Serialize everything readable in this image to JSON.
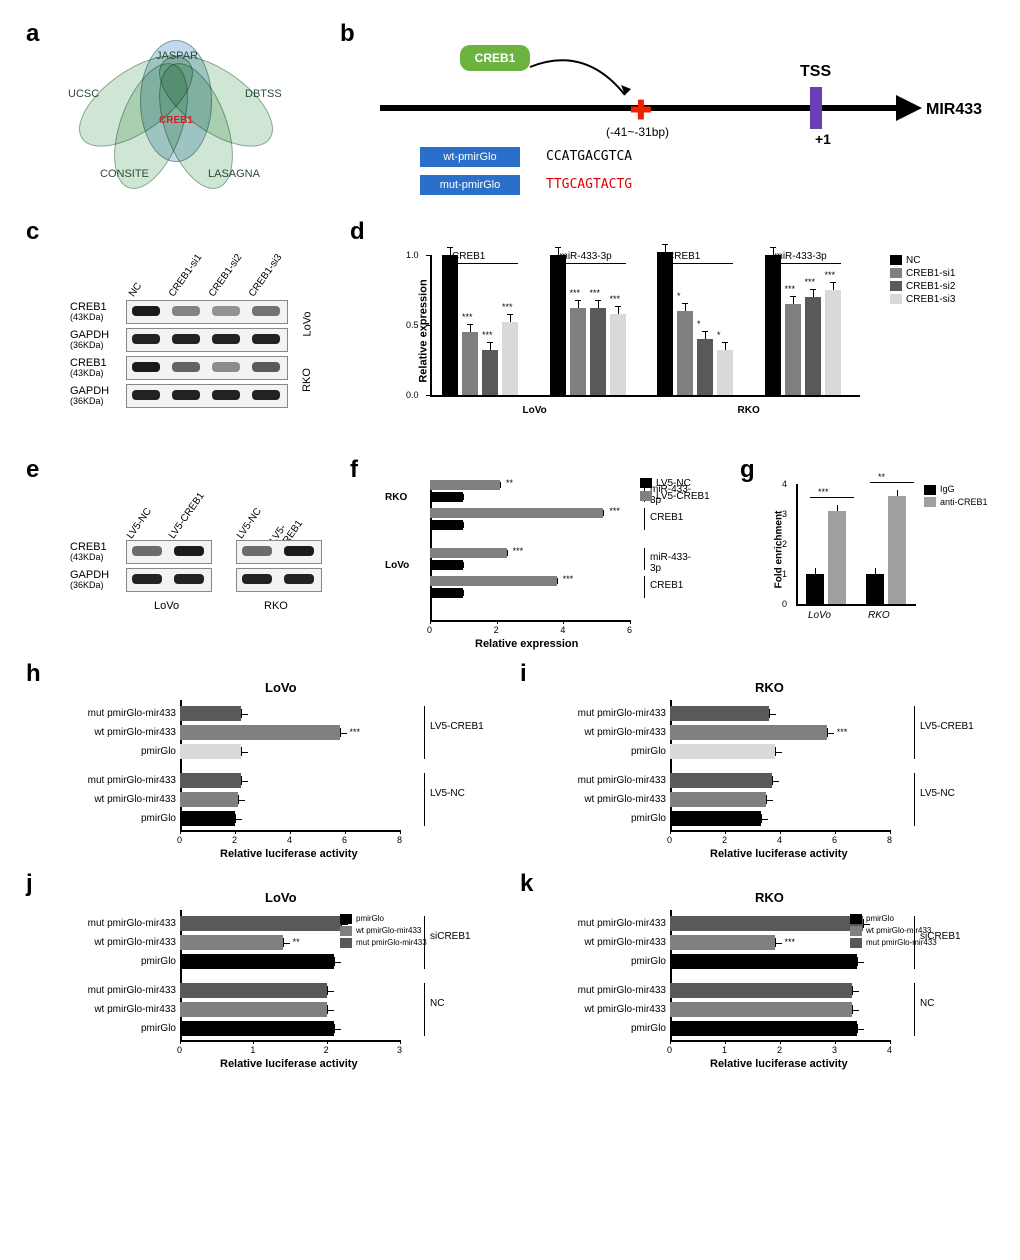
{
  "labels": {
    "a": "a",
    "b": "b",
    "c": "c",
    "d": "d",
    "e": "e",
    "f": "f",
    "g": "g",
    "h": "h",
    "i": "i",
    "j": "j",
    "k": "k"
  },
  "colors": {
    "nc": "#000000",
    "si1": "#808080",
    "si2": "#595959",
    "si3": "#d9d9d9",
    "lv5nc": "#000000",
    "lv5creb": "#808080",
    "igg": "#000000",
    "anti": "#a0a0a0",
    "pmir": "#000000",
    "wt": "#808080",
    "mut": "#595959",
    "green": "#6db33f",
    "blue": "#2a6fc9",
    "purple": "#6b3fb3",
    "red": "#e20000"
  },
  "venn": {
    "center": "CREB1",
    "petals": [
      "JASPAR",
      "DBTSS",
      "LASAGNA",
      "CONSITE",
      "UCSC"
    ]
  },
  "panel_b": {
    "creb": "CREB1",
    "tss": "TSS",
    "mir": "MIR433",
    "pos": "(-41~-31bp)",
    "plus1": "+1",
    "wt_label": "wt-pmirGlo",
    "mut_label": "mut-pmirGlo",
    "wt_seq": "CCATGACGTCA",
    "mut_seq": "TTGCAGTACTG"
  },
  "panel_c": {
    "lanes": [
      "NC",
      "CREB1-si1",
      "CREB1-si2",
      "CREB1-si3"
    ],
    "rows": [
      {
        "name": "CREB1",
        "kda": "(43KDa)",
        "cell": "LoVo",
        "intensity": [
          1.0,
          0.35,
          0.25,
          0.45
        ]
      },
      {
        "name": "GAPDH",
        "kda": "(36KDa)",
        "cell": "LoVo",
        "intensity": [
          0.95,
          0.95,
          0.95,
          0.95
        ]
      },
      {
        "name": "CREB1",
        "kda": "(43KDa)",
        "cell": "RKO",
        "intensity": [
          1.0,
          0.55,
          0.3,
          0.6
        ]
      },
      {
        "name": "GAPDH",
        "kda": "(36KDa)",
        "cell": "RKO",
        "intensity": [
          0.95,
          0.95,
          0.95,
          0.95
        ]
      }
    ]
  },
  "panel_d": {
    "type": "bar",
    "ylabel": "Relative expression",
    "ylim": [
      0,
      1.0
    ],
    "ytick_step": 0.5,
    "groups": [
      "CREB1",
      "miR-433-3p",
      "CREB1",
      "miR-433-3p"
    ],
    "cells": [
      "LoVo",
      "RKO"
    ],
    "legend": [
      "NC",
      "CREB1-si1",
      "CREB1-si2",
      "CREB1-si3"
    ],
    "colors": [
      "#000000",
      "#808080",
      "#595959",
      "#d9d9d9"
    ],
    "data": [
      [
        1.0,
        0.45,
        0.32,
        0.52
      ],
      [
        1.0,
        0.62,
        0.62,
        0.58
      ],
      [
        1.02,
        0.6,
        0.4,
        0.32
      ],
      [
        1.0,
        0.65,
        0.7,
        0.75
      ]
    ],
    "err": 0.05,
    "sig": [
      [
        "",
        "***",
        "***",
        "***"
      ],
      [
        "",
        "***",
        "***",
        "***"
      ],
      [
        "",
        "*",
        "*",
        "*"
      ],
      [
        "",
        "***",
        "***",
        "***"
      ]
    ]
  },
  "panel_e": {
    "lanes": [
      "LV5-NC",
      "LV5-CREB1"
    ],
    "cells": [
      "LoVo",
      "RKO"
    ],
    "rows": [
      {
        "name": "CREB1",
        "kda": "(43KDa)"
      },
      {
        "name": "GAPDH",
        "kda": "(36KDa)"
      }
    ],
    "intensity": {
      "LoVo": [
        [
          0.5,
          1.0
        ],
        [
          0.95,
          0.95
        ]
      ],
      "RKO": [
        [
          0.5,
          1.0
        ],
        [
          0.95,
          0.95
        ]
      ]
    }
  },
  "panel_f": {
    "type": "hbar",
    "xlabel": "Relative expression",
    "xlim": [
      0,
      6
    ],
    "xtick_step": 2,
    "legend": [
      "LV5-NC",
      "LV5-CREB1"
    ],
    "colors": [
      "#000000",
      "#808080"
    ],
    "groups": [
      {
        "cell": "RKO",
        "targets": [
          {
            "name": "miR-433-3p",
            "vals": [
              1.0,
              2.1
            ],
            "sig": "**"
          },
          {
            "name": "CREB1",
            "vals": [
              1.0,
              5.2
            ],
            "sig": "***"
          }
        ]
      },
      {
        "cell": "LoVo",
        "targets": [
          {
            "name": "miR-433-3p",
            "vals": [
              1.0,
              2.3
            ],
            "sig": "***"
          },
          {
            "name": "CREB1",
            "vals": [
              1.0,
              3.8
            ],
            "sig": "***"
          }
        ]
      }
    ]
  },
  "panel_g": {
    "type": "bar",
    "ylabel": "Fold enrichment",
    "ylim": [
      0,
      4
    ],
    "ytick_step": 1,
    "legend": [
      "IgG",
      "anti-CREB1"
    ],
    "colors": [
      "#000000",
      "#a0a0a0"
    ],
    "cells": [
      "LoVo",
      "RKO"
    ],
    "data": [
      [
        1.0,
        3.1
      ],
      [
        1.0,
        3.6
      ]
    ],
    "sig": [
      "***",
      "**"
    ]
  },
  "panel_h": {
    "title": "LoVo",
    "xlabel": "Relative luciferase activity",
    "xlim": [
      0,
      8
    ],
    "xtick_step": 2,
    "groups": [
      "LV5-CREB1",
      "LV5-NC"
    ],
    "cats": [
      "mut pmirGlo-mir433",
      "wt pmirGlo-mir433",
      "pmirGlo"
    ],
    "colors": [
      "#595959",
      "#808080",
      "#d9d9d9",
      "#595959",
      "#808080",
      "#000000"
    ],
    "vals": [
      2.2,
      5.8,
      2.2,
      2.2,
      2.1,
      2.0
    ],
    "sig": [
      "",
      "***",
      "",
      "",
      "",
      ""
    ]
  },
  "panel_i": {
    "title": "RKO",
    "xlabel": "Relative luciferase activity",
    "xlim": [
      0,
      8
    ],
    "xtick_step": 2,
    "groups": [
      "LV5-CREB1",
      "LV5-NC"
    ],
    "cats": [
      "mut pmirGlo-mir433",
      "wt pmirGlo-mir433",
      "pmirGlo"
    ],
    "colors": [
      "#595959",
      "#808080",
      "#d9d9d9",
      "#595959",
      "#808080",
      "#000000"
    ],
    "vals": [
      3.6,
      5.7,
      3.8,
      3.7,
      3.5,
      3.3
    ],
    "sig": [
      "",
      "***",
      "",
      "",
      "",
      ""
    ]
  },
  "panel_j": {
    "title": "LoVo",
    "xlabel": "Relative luciferase activity",
    "xlim": [
      0,
      3
    ],
    "xtick_step": 1,
    "groups": [
      "siCREB1",
      "NC"
    ],
    "cats": [
      "mut pmirGlo-mir433",
      "wt pmirGlo-mir433",
      "pmirGlo"
    ],
    "legend": [
      "pmirGlo",
      "wt pmirGlo-mir433",
      "mut pmirGlo-mir433"
    ],
    "colors": [
      "#595959",
      "#808080",
      "#000000",
      "#595959",
      "#808080",
      "#000000"
    ],
    "vals": [
      2.2,
      1.4,
      2.1,
      2.0,
      2.0,
      2.1
    ],
    "sig": [
      "",
      "**",
      "",
      "",
      "",
      ""
    ]
  },
  "panel_k": {
    "title": "RKO",
    "xlabel": "Relative luciferase activity",
    "xlim": [
      0,
      4
    ],
    "xtick_step": 1,
    "groups": [
      "siCREB1",
      "NC"
    ],
    "cats": [
      "mut pmirGlo-mir433",
      "wt pmirGlo-mir433",
      "pmirGlo"
    ],
    "legend": [
      "pmirGlo",
      "wt pmirGlo-mir433",
      "mut pmirGlo-mir433"
    ],
    "colors": [
      "#595959",
      "#808080",
      "#000000",
      "#595959",
      "#808080",
      "#000000"
    ],
    "vals": [
      3.5,
      1.9,
      3.4,
      3.3,
      3.3,
      3.4
    ],
    "sig": [
      "",
      "***",
      "",
      "",
      "",
      ""
    ]
  }
}
